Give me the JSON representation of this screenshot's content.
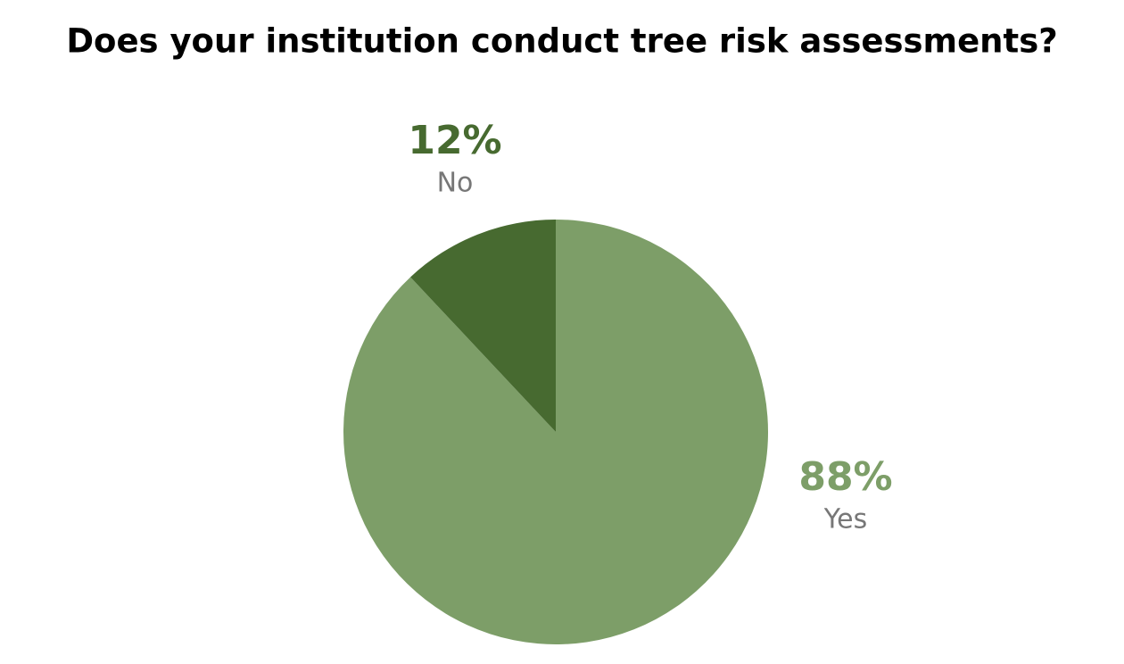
{
  "chart_data": {
    "type": "pie",
    "title": "Does your institution conduct tree risk assessments?",
    "categories": [
      "Yes",
      "No"
    ],
    "values": [
      88,
      12
    ],
    "value_labels": [
      "88%",
      "12%"
    ],
    "colors": [
      "#7d9e68",
      "#476a30"
    ]
  }
}
